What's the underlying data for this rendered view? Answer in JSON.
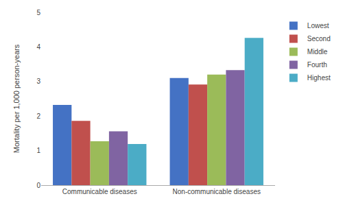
{
  "chart_data": {
    "type": "bar",
    "categories": [
      "Communicable diseases",
      "Non-communicable diseases"
    ],
    "series": [
      {
        "name": "Lowest",
        "values": [
          2.32,
          3.1
        ],
        "color": "#4472C4"
      },
      {
        "name": "Second",
        "values": [
          1.86,
          2.91
        ],
        "color": "#C0504D"
      },
      {
        "name": "Middle",
        "values": [
          1.27,
          3.2
        ],
        "color": "#9BBB59"
      },
      {
        "name": "Fourth",
        "values": [
          1.56,
          3.33
        ],
        "color": "#8064A2"
      },
      {
        "name": "Highest",
        "values": [
          1.19,
          4.26
        ],
        "color": "#4BACC6"
      }
    ],
    "ylabel": "Mortality per 1,000 person-years",
    "ylim": [
      0,
      5
    ],
    "yticks": [
      0,
      1,
      2,
      3,
      4,
      5
    ],
    "grid": false,
    "legend": "right"
  }
}
